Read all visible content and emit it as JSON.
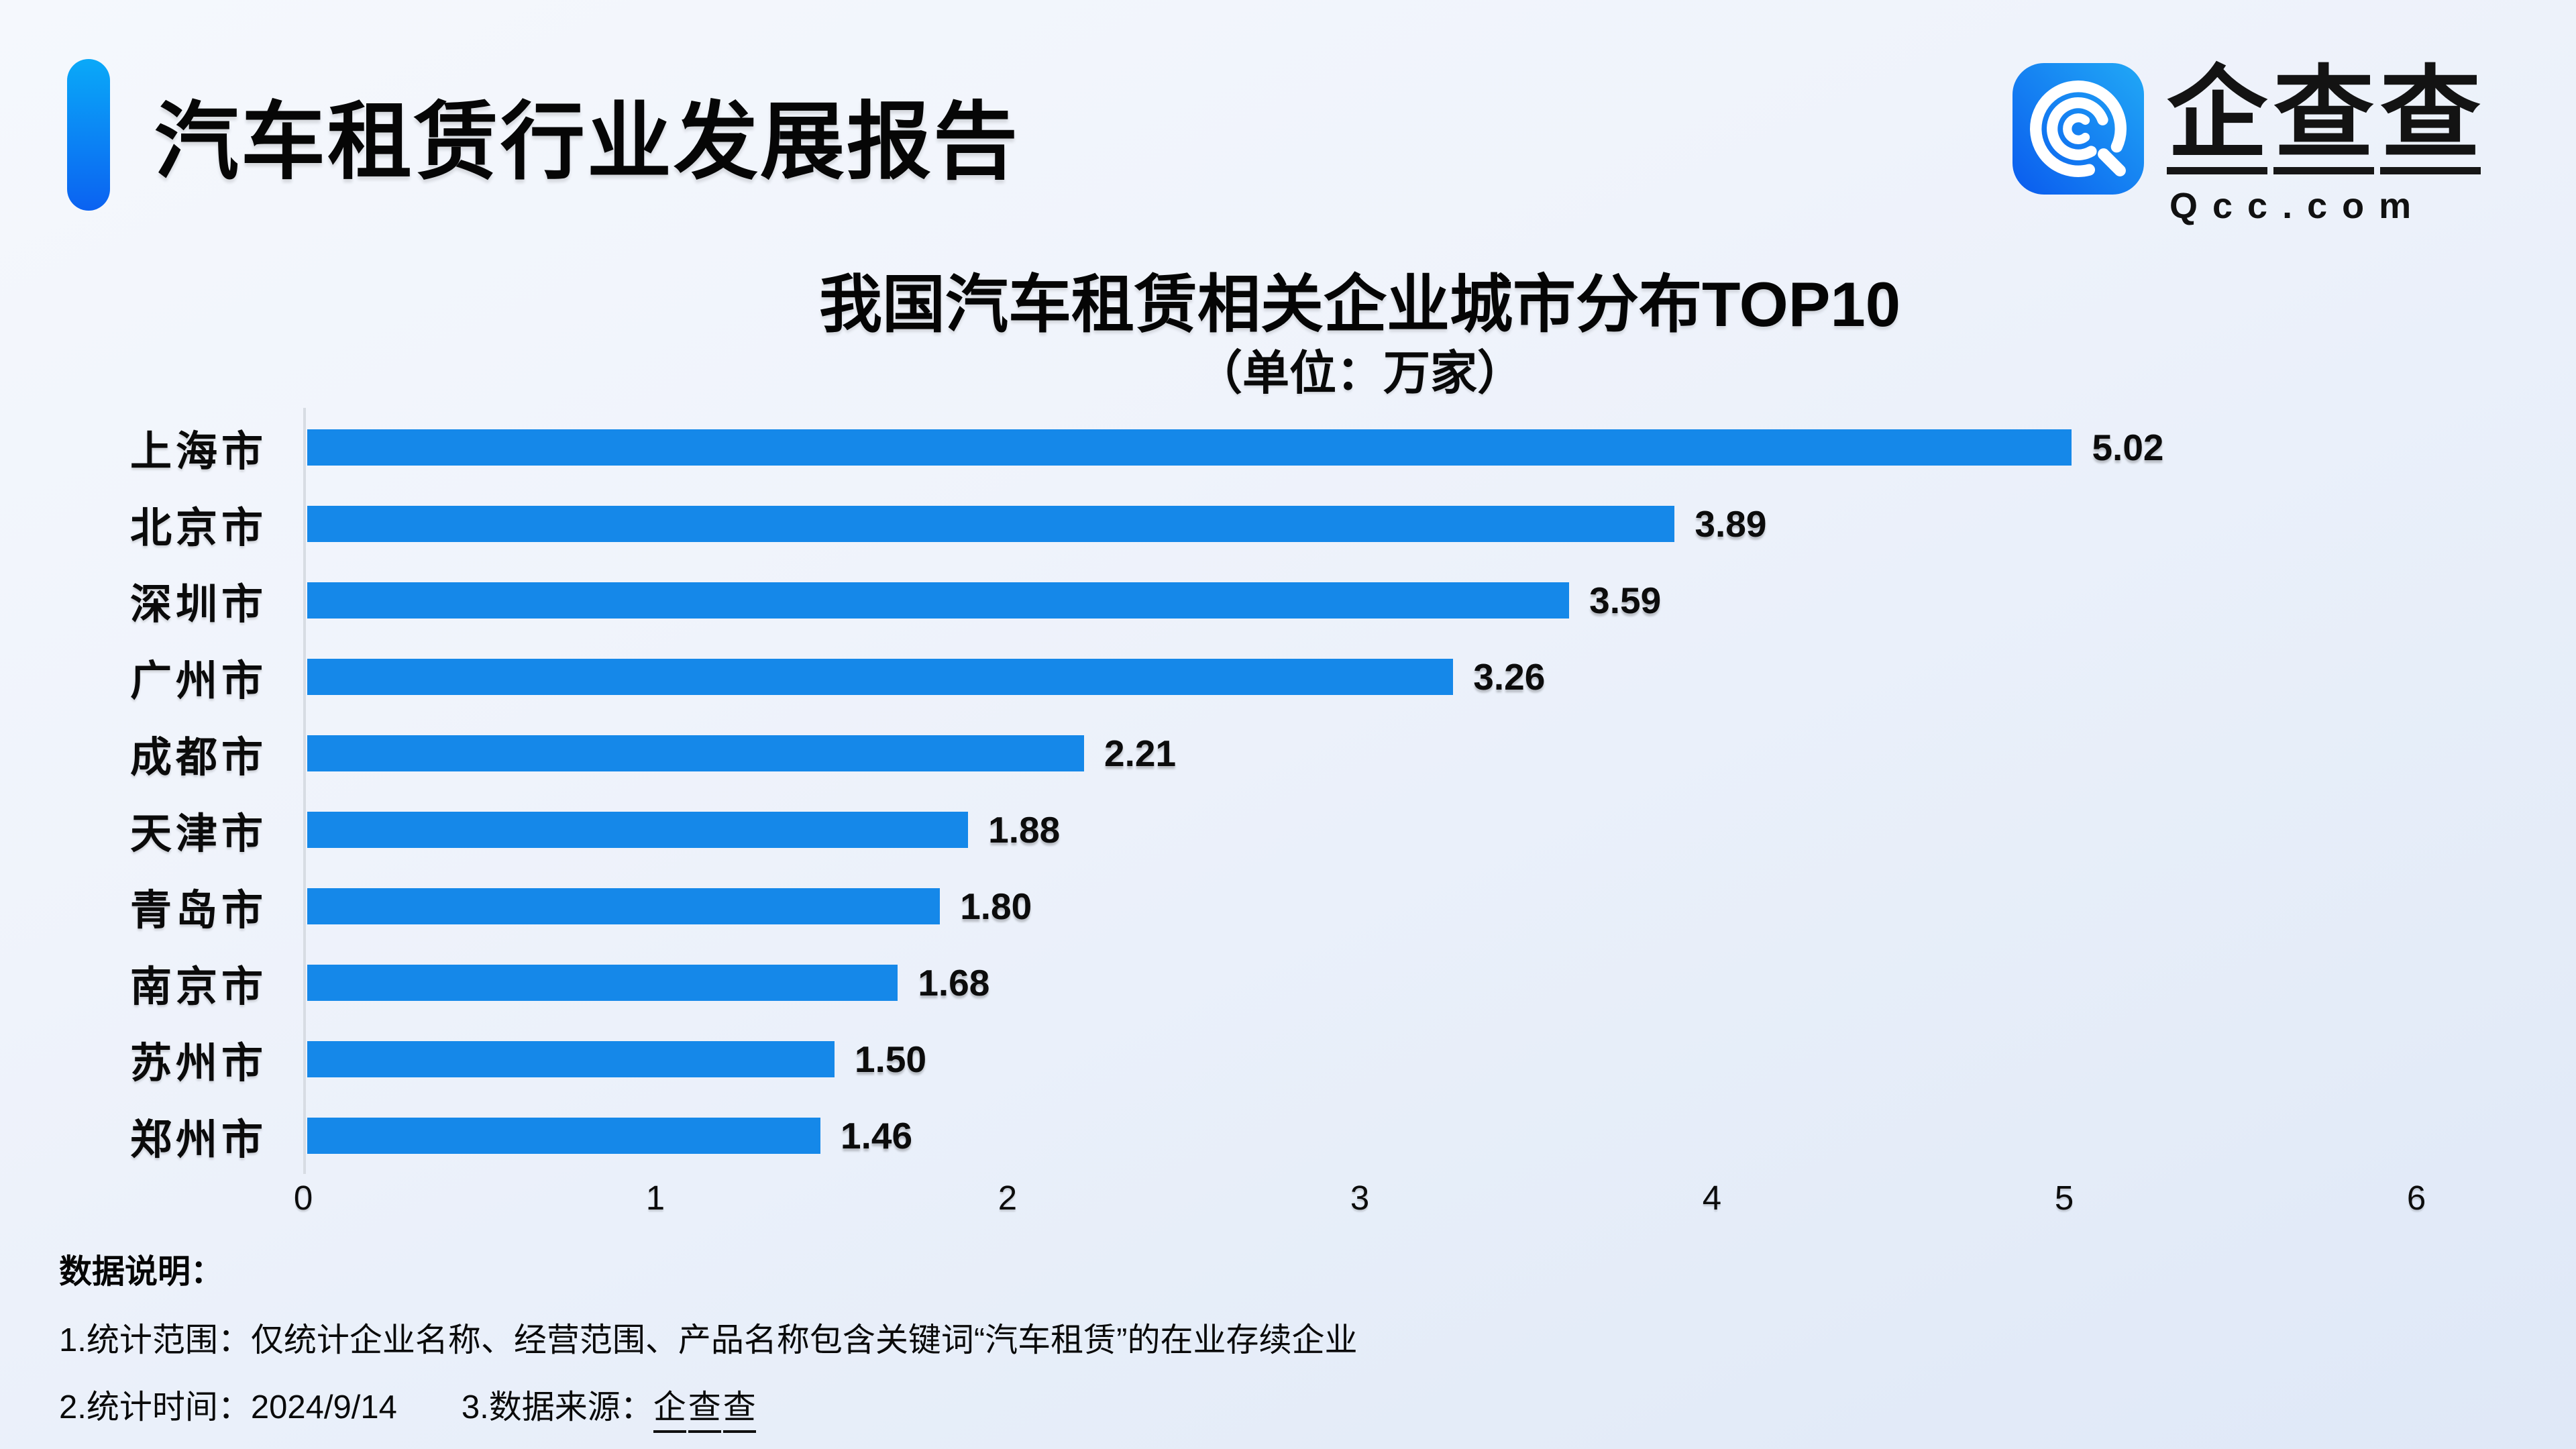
{
  "header": {
    "title": "汽车租赁行业发展报告"
  },
  "logo": {
    "name": "企查查",
    "domain": "Qcc.com",
    "icon": "qcc-magnifier-icon",
    "icon_gradient": [
      "#0a5bee",
      "#21a9f6"
    ]
  },
  "chart_data": {
    "type": "bar",
    "orientation": "horizontal",
    "title": "我国汽车租赁相关企业城市分布TOP10",
    "subtitle": "（单位：万家）",
    "unit": "万家",
    "categories": [
      "上海市",
      "北京市",
      "深圳市",
      "广州市",
      "成都市",
      "天津市",
      "青岛市",
      "南京市",
      "苏州市",
      "郑州市"
    ],
    "values": [
      5.02,
      3.89,
      3.59,
      3.26,
      2.21,
      1.88,
      1.8,
      1.68,
      1.5,
      1.46
    ],
    "value_labels": [
      "5.02",
      "3.89",
      "3.59",
      "3.26",
      "2.21",
      "1.88",
      "1.80",
      "1.68",
      "1.50",
      "1.46"
    ],
    "xlim": [
      0,
      6
    ],
    "x_ticks": [
      0,
      1,
      2,
      3,
      4,
      5,
      6
    ],
    "bar_color": "#1588E9",
    "grid": false,
    "legend": false
  },
  "footer": {
    "heading": "数据说明：",
    "note1": "1.统计范围：仅统计企业名称、经营范围、产品名称包含关键词“汽车租赁”的在业存续企业",
    "note2_time": "2.统计时间：2024/9/14",
    "note2_source_label": "3.数据来源：",
    "note2_source": "企查查"
  },
  "colors": {
    "accent_gradient_top": "#0aa9f8",
    "accent_gradient_bottom": "#0b62f1",
    "bar_blue": "#1588E9",
    "axis_line": "#d7dce3",
    "background_top": "#f5f8fd",
    "background_bottom": "#dfe8f7"
  }
}
